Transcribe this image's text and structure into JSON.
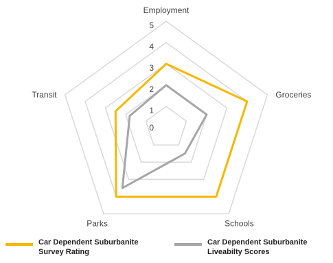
{
  "chart_data": {
    "type": "radar",
    "axes": [
      "Employment",
      "Groceries",
      "Schools",
      "Parks",
      "Transit"
    ],
    "rlim": [
      0,
      5
    ],
    "ticks": [
      "0",
      "1",
      "2",
      "3",
      "4",
      "5"
    ],
    "grid": true,
    "legend_position": "bottom",
    "series": [
      {
        "name": "Car Dependent Suburbanite Survey Rating",
        "values": [
          3,
          4,
          4,
          4,
          2.5
        ],
        "color": "#f5b800"
      },
      {
        "name": "Car Dependent Suburbanite Liveabilty Scores",
        "values": [
          2,
          2,
          1.5,
          3.5,
          1.8
        ],
        "color": "#a6a6a6"
      }
    ]
  }
}
